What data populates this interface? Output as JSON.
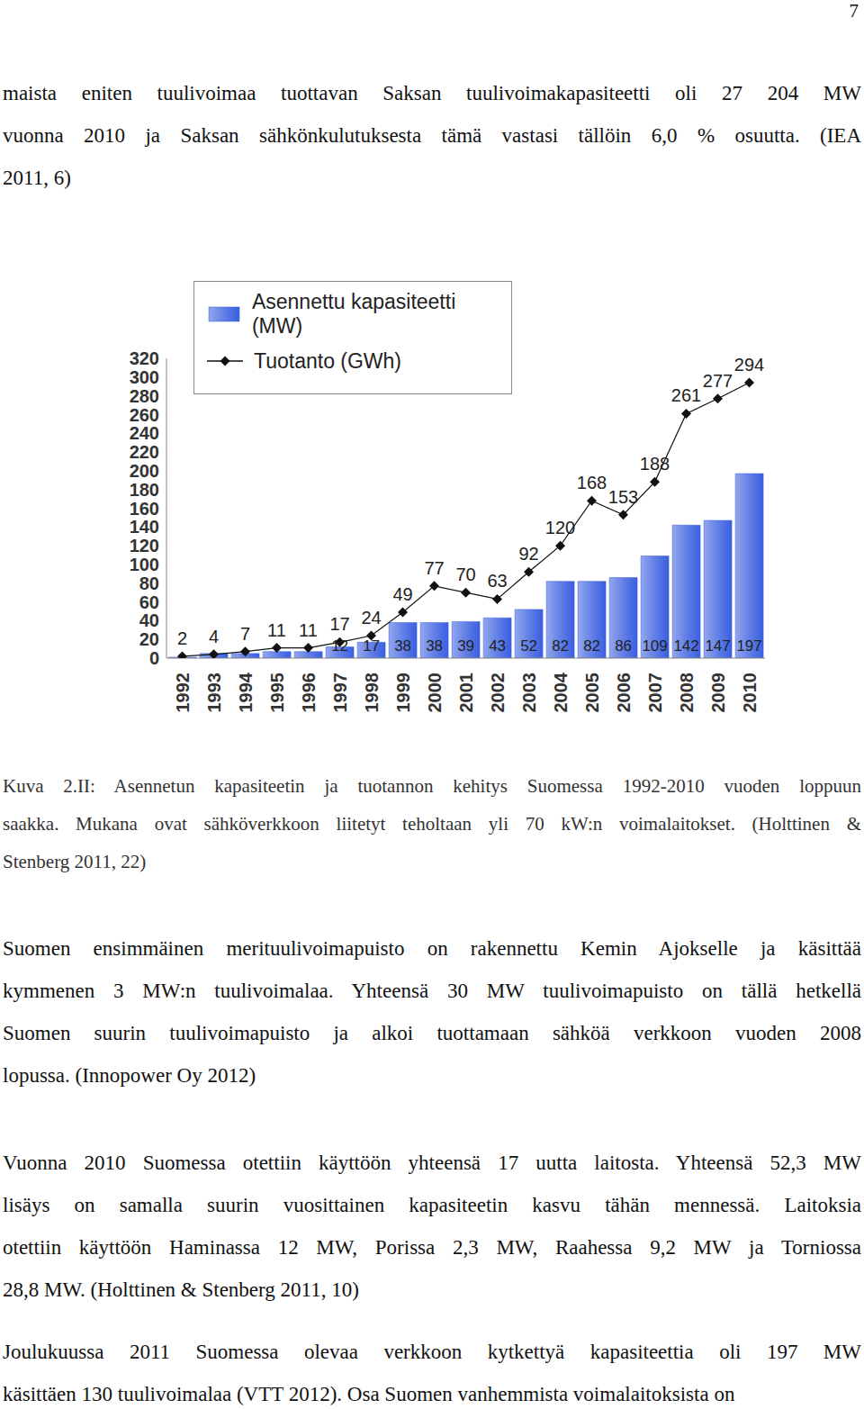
{
  "page_number": "7",
  "paragraphs_before": [
    {
      "lines": [
        "maista eniten tuulivoimaa tuottavan Saksan tuulivoimakapasiteetti oli 27 204 MW",
        "vuonna 2010 ja Saksan sähkönkulutuksesta tämä vastasi tällöin 6,0 % osuutta. (IEA",
        "2011, 6)"
      ]
    }
  ],
  "caption": {
    "lines": [
      "Kuva 2.II: Asennetun kapasiteetin ja tuotannon kehitys Suomessa 1992-2010 vuoden loppuun",
      "saakka. Mukana ovat sähköverkkoon liitetyt teholtaan yli 70 kW:n voimalaitokset. (Holttinen &",
      "Stenberg 2011, 22)"
    ]
  },
  "paragraphs_after": [
    {
      "lines": [
        "Suomen ensimmäinen merituulivoimapuisto on rakennettu Kemin Ajokselle ja käsittää",
        "kymmenen 3 MW:n tuulivoimalaa. Yhteensä 30 MW tuulivoimapuisto on tällä hetkellä",
        "Suomen suurin tuulivoimapuisto ja alkoi tuottamaan sähköä verkkoon vuoden 2008",
        "lopussa. (Innopower Oy 2012)"
      ]
    },
    {
      "lines": [
        "Vuonna 2010 Suomessa otettiin käyttöön yhteensä 17 uutta laitosta. Yhteensä 52,3 MW",
        "lisäys on samalla suurin vuosittainen kapasiteetin kasvu tähän mennessä. Laitoksia",
        "otettiin käyttöön Haminassa 12 MW, Porissa 2,3 MW, Raahessa 9,2 MW ja Torniossa",
        "28,8 MW. (Holttinen & Stenberg 2011, 10)"
      ]
    },
    {
      "lines": [
        "Joulukuussa 2011 Suomessa olevaa verkkoon kytkettyä kapasiteettia oli 197 MW",
        "käsittäen 130 tuulivoimalaa (VTT 2012). Osa Suomen vanhemmista voimalaitoksista on"
      ]
    }
  ],
  "chart_data": {
    "type": "bar",
    "categories": [
      "1992",
      "1993",
      "1994",
      "1995",
      "1996",
      "1997",
      "1998",
      "1999",
      "2000",
      "2001",
      "2002",
      "2003",
      "2004",
      "2005",
      "2006",
      "2007",
      "2008",
      "2009",
      "2010"
    ],
    "series": [
      {
        "name": "Asennettu kapasiteetti (MW)",
        "type": "bar",
        "color": "#3a5fe0",
        "values": [
          1,
          5,
          5,
          7,
          7,
          12,
          17,
          38,
          38,
          39,
          43,
          52,
          82,
          82,
          86,
          109,
          142,
          147,
          197
        ],
        "value_labels": [
          null,
          null,
          null,
          null,
          null,
          "12",
          "17",
          "38",
          "38",
          "39",
          "43",
          "52",
          "82",
          "82",
          "86",
          "109",
          "142",
          "147",
          "197"
        ]
      },
      {
        "name": "Tuotanto (GWh)",
        "type": "line",
        "color": "#111111",
        "marker": "diamond",
        "values": [
          2,
          4,
          7,
          11,
          11,
          17,
          24,
          49,
          77,
          70,
          63,
          92,
          120,
          168,
          153,
          188,
          261,
          277,
          294
        ]
      }
    ],
    "ylim": [
      0,
      320
    ],
    "yticks": [
      0,
      20,
      40,
      60,
      80,
      100,
      120,
      140,
      160,
      180,
      200,
      220,
      240,
      260,
      280,
      300,
      320
    ],
    "data_labels": true,
    "legend": "upper left",
    "grid": false
  }
}
